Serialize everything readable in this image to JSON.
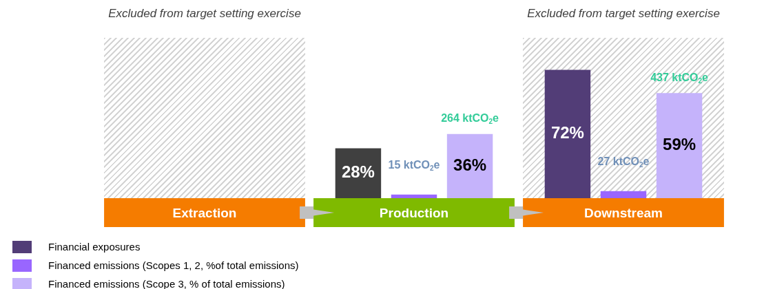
{
  "chart_data": {
    "type": "bar",
    "categories": [
      "Extraction",
      "Production",
      "Downstream"
    ],
    "series": [
      {
        "name": "Financial exposures",
        "color": "#523d77",
        "colors": [
          "#523d77",
          "#404040",
          "#523d77"
        ],
        "values": [
          null,
          28,
          72
        ],
        "value_labels": [
          null,
          "28%",
          "72%"
        ]
      },
      {
        "name": "Financed emissions (Scopes 1, 2, %of total emissions)",
        "color": "#9966ff",
        "values": [
          null,
          2,
          4
        ]
      },
      {
        "name": "Financed emissions (Scope 3, % of total emissions)",
        "color": "#c5b3fb",
        "values": [
          null,
          36,
          59
        ],
        "value_labels": [
          null,
          "36%",
          "59%"
        ]
      }
    ],
    "annotations": [
      "15 ktCO$_{2}$e",
      "264 ktCO$_{2}$e",
      "27 ktCO$_{2}$e",
      "437 ktCO$_{2}$e"
    ],
    "bands": [
      {
        "axis": "x",
        "from": "Extraction",
        "to": "Extraction",
        "label": "Excluded from target setting exercise",
        "color": "#d4d4d4"
      },
      {
        "axis": "x",
        "from": "Downstream",
        "to": "Downstream",
        "label": "Excluded from target setting exercise",
        "color": "#d4d4d4"
      }
    ],
    "legend": "bottom left",
    "grid": false,
    "tick_labels": "x"
  }
}
